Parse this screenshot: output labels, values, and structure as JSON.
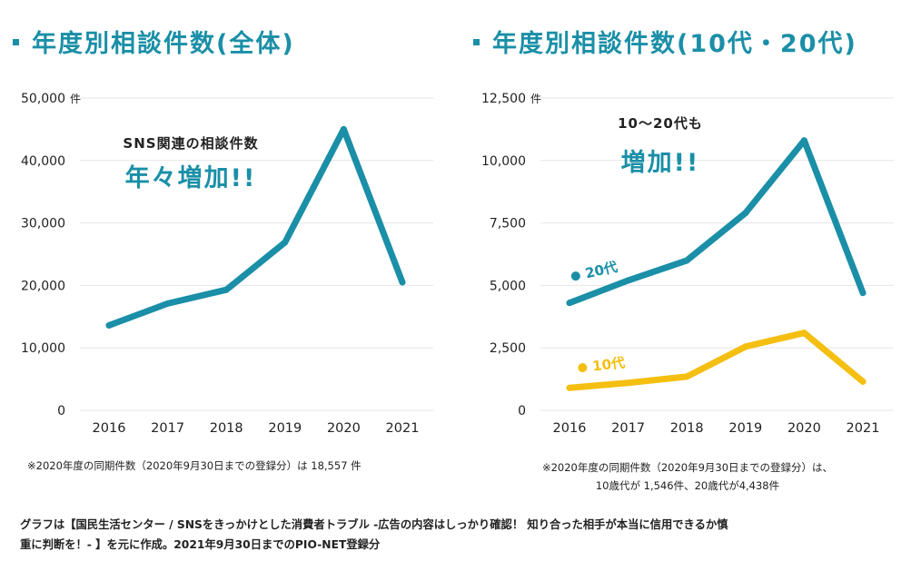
{
  "left": {
    "title": "年度別相談件数(全体)",
    "callout_line1": "SNS関連の相談件数",
    "callout_line2": "年々増加!!",
    "note": "※2020年度の同期件数（2020年9月30日までの登録分）は 18,557 件"
  },
  "right": {
    "title": "年度別相談件数(10代・20代)",
    "callout_line1": "10～20代も",
    "callout_line2": "増加!!",
    "note_line1": "※2020年度の同期件数（2020年9月30日までの登録分）は、",
    "note_line2": "10歳代が 1,546件、20歳代が4,438件"
  },
  "footer": {
    "line1": "グラフは【国民生活センター / SNSをきっかけとした消費者トラブル -広告の内容はしっかり確認！ 知り合った相手が本当に信用できるか慎",
    "line2": "重に判断を！- 】を元に作成。2021年9月30日までのPIO-NET登録分"
  },
  "colors": {
    "teal": "#1a8fa7",
    "yellow": "#f4bf10",
    "grid": "#e6e6e6"
  },
  "chart_data": [
    {
      "type": "line",
      "title": "年度別相談件数(全体)",
      "categories": [
        "2016",
        "2017",
        "2018",
        "2019",
        "2020",
        "2021"
      ],
      "series": [
        {
          "name": "全体",
          "values": [
            13600,
            17100,
            19300,
            26900,
            45000,
            20500
          ],
          "color": "#1a8fa7"
        }
      ],
      "ylim": [
        0,
        50000
      ],
      "yticks": [
        0,
        10000,
        20000,
        30000,
        40000,
        50000
      ],
      "ytick_labels": [
        "0",
        "10,000",
        "20,000",
        "30,000",
        "40,000",
        "50,000"
      ],
      "yunit": "件"
    },
    {
      "type": "line",
      "title": "年度別相談件数(10代・20代)",
      "categories": [
        "2016",
        "2017",
        "2018",
        "2019",
        "2020",
        "2021"
      ],
      "series": [
        {
          "name": "20代",
          "values": [
            4300,
            5200,
            6000,
            7900,
            10800,
            4700
          ],
          "color": "#1a8fa7"
        },
        {
          "name": "10代",
          "values": [
            900,
            1100,
            1350,
            2550,
            3100,
            1150
          ],
          "color": "#f4bf10"
        }
      ],
      "ylim": [
        0,
        12500
      ],
      "yticks": [
        0,
        2500,
        5000,
        7500,
        10000,
        12500
      ],
      "ytick_labels": [
        "0",
        "2,500",
        "5,000",
        "7,500",
        "10,000",
        "12,500"
      ],
      "yunit": "件"
    }
  ]
}
